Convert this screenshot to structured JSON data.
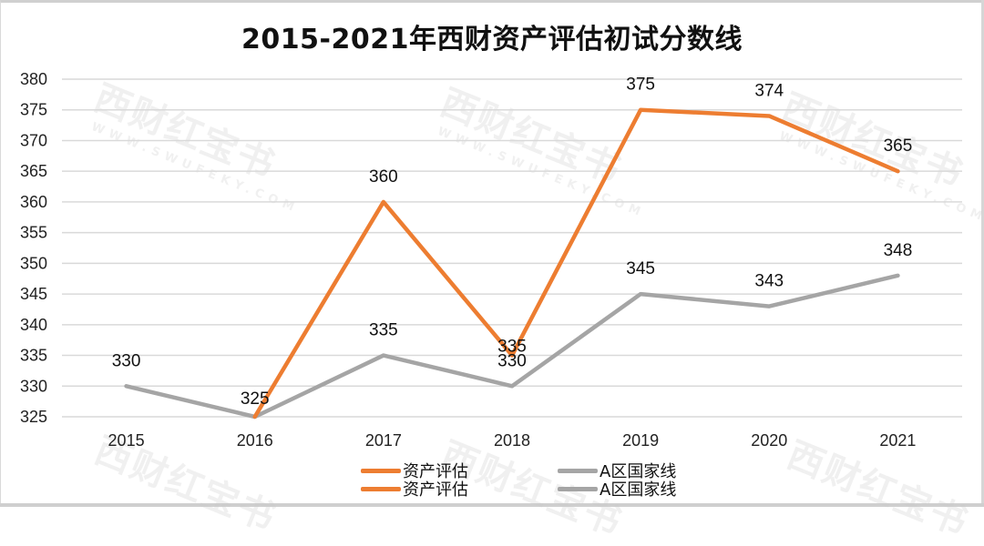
{
  "chart_data": {
    "type": "line",
    "title": "2015-2021年西财资产评估初试分数线",
    "xlabel": "",
    "ylabel": "",
    "categories": [
      "2015",
      "2016",
      "2017",
      "2018",
      "2019",
      "2020",
      "2021"
    ],
    "series": [
      {
        "name": "资产评估",
        "color": "#ED7D31",
        "values": [
          null,
          325,
          360,
          335,
          375,
          374,
          365
        ]
      },
      {
        "name": "A区国家线",
        "color": "#A5A5A5",
        "values": [
          330,
          325,
          335,
          330,
          345,
          343,
          348
        ]
      }
    ],
    "data_labels": {
      "资产评估": [
        "",
        "",
        "360",
        "335",
        "375",
        "374",
        "365"
      ],
      "A区国家线": [
        "330",
        "325",
        "335",
        "330",
        "345",
        "343",
        "348"
      ]
    },
    "ylim": [
      325,
      380
    ],
    "yticks": [
      "380",
      "375",
      "370",
      "365",
      "360",
      "355",
      "350",
      "345",
      "340",
      "335",
      "330",
      "325"
    ],
    "grid": true,
    "legend_position": "bottom",
    "legend_entries": [
      "资产评估",
      "A区国家线",
      "资产评估",
      "A区国家线"
    ]
  },
  "header": {
    "title": "2015-2021年西财资产评估初试分数线"
  },
  "legend": {
    "items": [
      {
        "label": "资产评估",
        "color": "#ED7D31"
      },
      {
        "label": "A区国家线",
        "color": "#A5A5A5"
      },
      {
        "label": "资产评估",
        "color": "#ED7D31"
      },
      {
        "label": "A区国家线",
        "color": "#A5A5A5"
      }
    ]
  },
  "watermark": {
    "text": "西财红宝书",
    "url_text": "WWW.SWUFEKY.COM"
  }
}
